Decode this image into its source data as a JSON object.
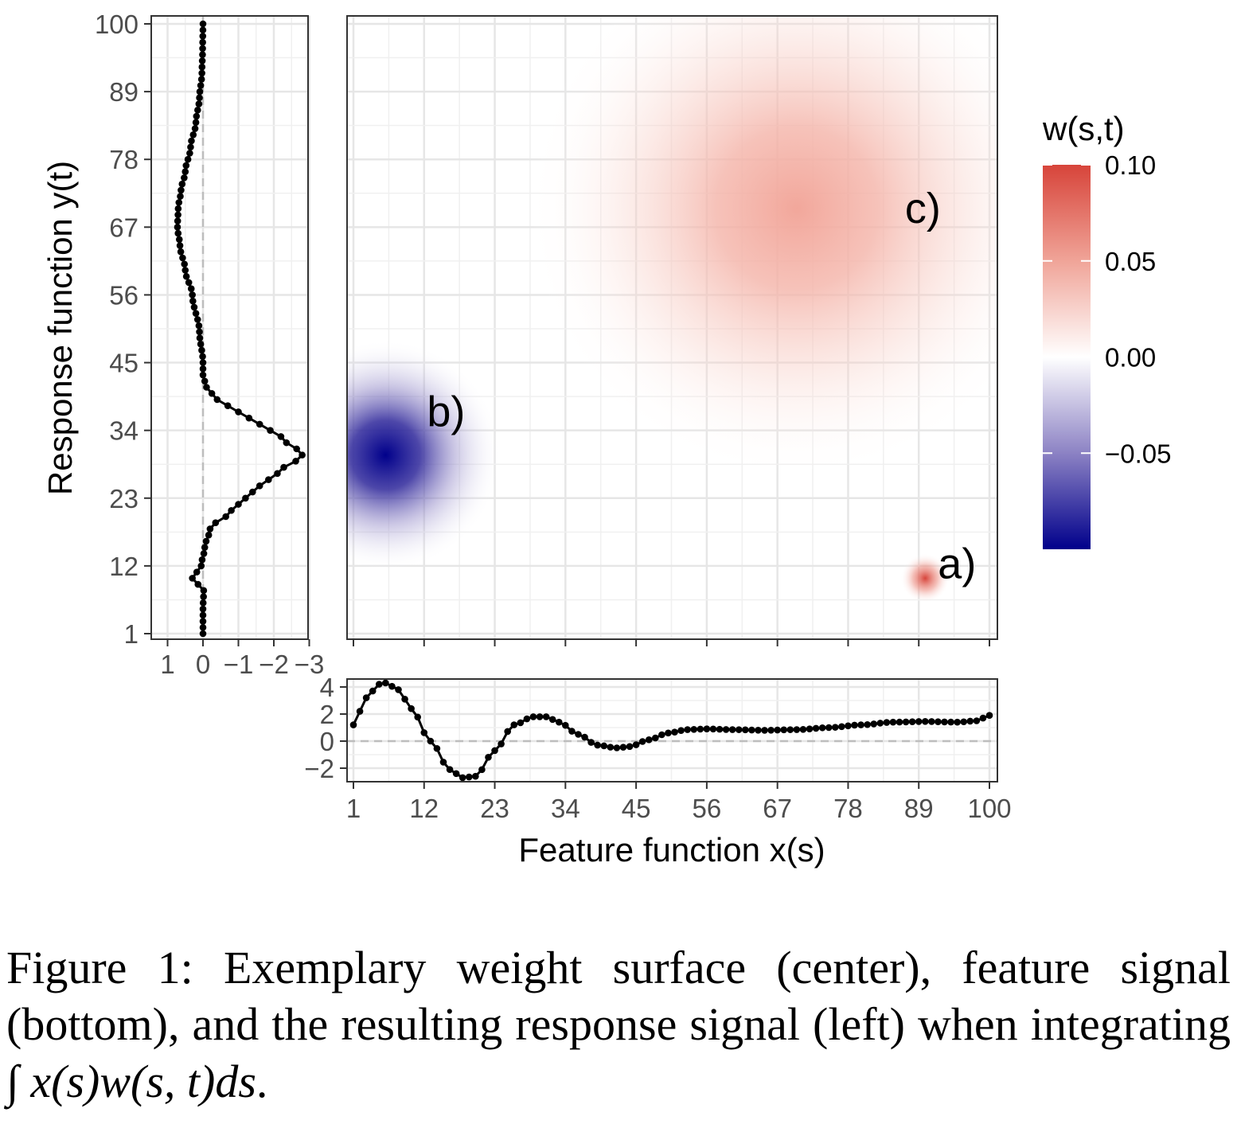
{
  "chart_data": [
    {
      "type": "heatmap",
      "panel": "center",
      "legend_title": "w(s,t)",
      "legend_ticks": [
        "0.10",
        "0.05",
        "0.00",
        "−0.05"
      ],
      "legend_values": [
        0.1,
        0.05,
        0.0,
        -0.05
      ],
      "color_range": [
        -0.1,
        0.1
      ],
      "colors": {
        "low": "#00008b",
        "mid": "#ffffff",
        "high": "#d7443a"
      },
      "x_range": [
        1,
        100
      ],
      "y_range": [
        1,
        100
      ],
      "legend_position": "right",
      "grid": true,
      "bumps": [
        {
          "label": "a)",
          "s": 90,
          "t": 10,
          "sd": 1.2,
          "peak": 0.1
        },
        {
          "label": "b)",
          "s": 6,
          "t": 30,
          "sd": 6,
          "peak": -0.1
        },
        {
          "label": "c)",
          "s": 70,
          "t": 70,
          "sd": 14,
          "peak": 0.045
        }
      ]
    },
    {
      "type": "line",
      "panel": "left",
      "ylabel": "Response function y(t)",
      "y_ticks": [
        "100",
        "89",
        "78",
        "67",
        "56",
        "45",
        "34",
        "23",
        "12",
        "1"
      ],
      "y_tick_values": [
        100,
        89,
        78,
        67,
        56,
        45,
        34,
        23,
        12,
        1
      ],
      "x_ticks": [
        "1",
        "0",
        "−1",
        "−2",
        "−3"
      ],
      "x_tick_values": [
        1,
        0,
        -1,
        -2,
        -3
      ],
      "x_range": [
        1.5,
        -3
      ],
      "y_range": [
        1,
        100
      ],
      "reference_line": 0,
      "series": [
        {
          "t": [
            1,
            5,
            8,
            10,
            12,
            15,
            18,
            21,
            23,
            25,
            27,
            30,
            33,
            35,
            37,
            39,
            41,
            43,
            45,
            50,
            56,
            60,
            64,
            67,
            70,
            73,
            76,
            80,
            84,
            88,
            92,
            96,
            100
          ],
          "y": [
            0,
            0,
            -0.02,
            0.3,
            0.05,
            -0.05,
            -0.2,
            -0.8,
            -1.2,
            -1.6,
            -2.1,
            -2.8,
            -2.2,
            -1.6,
            -1.0,
            -0.4,
            -0.1,
            0,
            0,
            0.1,
            0.3,
            0.5,
            0.65,
            0.72,
            0.7,
            0.62,
            0.5,
            0.35,
            0.2,
            0.1,
            0.03,
            0.01,
            0
          ]
        }
      ]
    },
    {
      "type": "line",
      "panel": "bottom",
      "xlabel": "Feature function x(s)",
      "x_ticks": [
        "1",
        "12",
        "23",
        "34",
        "45",
        "56",
        "67",
        "78",
        "89",
        "100"
      ],
      "x_tick_values": [
        1,
        12,
        23,
        34,
        45,
        56,
        67,
        78,
        89,
        100
      ],
      "y_ticks": [
        "4",
        "2",
        "0",
        "−2"
      ],
      "y_tick_values": [
        4,
        2,
        0,
        -2
      ],
      "x_range": [
        1,
        100
      ],
      "y_range": [
        -3,
        4.5
      ],
      "reference_line": 0,
      "series": [
        {
          "s": [
            1,
            3,
            5,
            6,
            8,
            10,
            13,
            16,
            18,
            20,
            23,
            26,
            29,
            31,
            33,
            36,
            39,
            42,
            44,
            47,
            50,
            53,
            56,
            60,
            65,
            70,
            75,
            80,
            85,
            90,
            95,
            98,
            100
          ],
          "y": [
            1.2,
            3.2,
            4.2,
            4.3,
            3.8,
            2.4,
            0,
            -2.1,
            -2.7,
            -2.6,
            -0.7,
            1.2,
            1.8,
            1.8,
            1.4,
            0.5,
            -0.3,
            -0.5,
            -0.4,
            0.1,
            0.6,
            0.85,
            0.9,
            0.85,
            0.8,
            0.85,
            1.0,
            1.2,
            1.4,
            1.45,
            1.4,
            1.5,
            1.9
          ]
        }
      ]
    }
  ],
  "caption": {
    "lead": "Figure 1: Exemplary weight surface (center), feature signal (bottom), and the resulting response signal (left) when integrating ",
    "math": "∫ x(s)w(s, t)ds",
    "tail": "."
  }
}
